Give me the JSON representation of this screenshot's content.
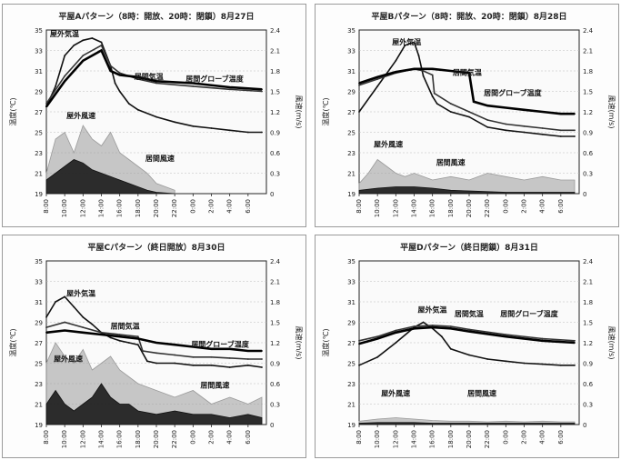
{
  "chart_data": [
    {
      "type": "line",
      "title": "平屋Aパターン（8時：開放、20時：閉鎖）8月27日",
      "ylabel": "温度(℃)",
      "y2label": "風速(m/s)",
      "ylim": [
        19,
        35
      ],
      "yticks": [
        "35",
        "33",
        "31",
        "29",
        "27",
        "25",
        "23",
        "21",
        "19"
      ],
      "y2lim": [
        0,
        2.4
      ],
      "y2ticks": [
        "2.4",
        "2.1",
        "1.8",
        "1.5",
        "1.2",
        "0.9",
        "0.6",
        "0.3",
        "0"
      ],
      "xlim": [
        8,
        32
      ],
      "xticks": [
        "8:00",
        "10:00",
        "12:00",
        "14:00",
        "16:00",
        "18:00",
        "20:00",
        "22:00",
        "0:00",
        "2:00",
        "4:00",
        "6:00"
      ],
      "annotations": [
        {
          "text": "屋外気温",
          "x": 8.4,
          "y": 34.4
        },
        {
          "text": "居間気温",
          "x": 17.6,
          "y": 30.2
        },
        {
          "text": "居間グローブ温度",
          "x": 23.2,
          "y": 30.0
        },
        {
          "text": "屋外風速",
          "x": 10.2,
          "y": 26.4
        },
        {
          "text": "居間風速",
          "x": 18.8,
          "y": 22.2
        }
      ],
      "series": [
        {
          "name": "屋外気温",
          "axis": "y",
          "color": "#111111",
          "x": [
            8,
            9,
            10,
            11,
            12,
            13,
            14,
            15,
            15.5,
            16,
            17,
            18,
            20,
            22,
            24,
            26,
            28,
            30,
            31.5
          ],
          "values": [
            27.5,
            29.5,
            32.5,
            33.5,
            34.0,
            34.2,
            33.8,
            31.5,
            29.8,
            29.0,
            27.8,
            27.2,
            26.5,
            26.0,
            25.6,
            25.4,
            25.2,
            25.0,
            25.0
          ]
        },
        {
          "name": "居間気温",
          "axis": "y",
          "color": "#333333",
          "x": [
            8,
            10,
            12,
            14,
            15,
            16,
            18,
            20,
            24,
            28,
            31.5
          ],
          "values": [
            27.8,
            30.5,
            32.5,
            33.5,
            31.5,
            30.8,
            30.2,
            29.8,
            29.5,
            29.2,
            29.0
          ]
        },
        {
          "name": "居間グローブ温度",
          "axis": "y",
          "color": "#000000",
          "x": [
            8,
            10,
            12,
            14,
            15,
            16,
            18,
            20,
            24,
            28,
            31.5
          ],
          "values": [
            27.5,
            30.0,
            32.0,
            33.0,
            31.0,
            30.6,
            30.4,
            30.0,
            29.8,
            29.4,
            29.2
          ]
        },
        {
          "name": "屋外風速",
          "axis": "y2",
          "color": "#9a9a9a",
          "x": [
            8,
            9,
            10,
            11,
            12,
            13,
            14,
            15,
            16,
            17,
            18,
            19,
            20,
            21,
            22
          ],
          "values": [
            0.3,
            0.8,
            0.9,
            0.6,
            1.0,
            0.8,
            0.7,
            0.9,
            0.6,
            0.5,
            0.4,
            0.3,
            0.15,
            0.1,
            0.05
          ]
        },
        {
          "name": "居間風速",
          "axis": "y2",
          "color": "#111111",
          "x": [
            8,
            9,
            10,
            11,
            12,
            13,
            14,
            15,
            16,
            17,
            18,
            19,
            20,
            21,
            22
          ],
          "values": [
            0.2,
            0.3,
            0.4,
            0.5,
            0.45,
            0.35,
            0.3,
            0.25,
            0.2,
            0.15,
            0.1,
            0.05,
            0.02,
            0.01,
            0.0
          ]
        }
      ]
    },
    {
      "type": "line",
      "title": "平屋Bパターン（8時：開放、20時：閉鎖）8月28日",
      "ylabel": "温度(℃)",
      "y2label": "風速(m/s)",
      "ylim": [
        19,
        35
      ],
      "yticks": [
        "35",
        "33",
        "31",
        "29",
        "27",
        "25",
        "23",
        "21",
        "19"
      ],
      "y2lim": [
        0,
        2.4
      ],
      "y2ticks": [
        "2.4",
        "2.1",
        "1.8",
        "1.5",
        "1.2",
        "0.9",
        "0.6",
        "0.3",
        "0"
      ],
      "xlim": [
        8,
        32
      ],
      "xticks": [
        "8:00",
        "10:00",
        "12:00",
        "14:00",
        "16:00",
        "18:00",
        "20:00",
        "22:00",
        "0:00",
        "2:00",
        "4:00",
        "6:00"
      ],
      "annotations": [
        {
          "text": "屋外気温",
          "x": 11.6,
          "y": 33.6
        },
        {
          "text": "居間気温",
          "x": 18.2,
          "y": 30.6
        },
        {
          "text": "居間グローブ温度",
          "x": 21.6,
          "y": 28.6
        },
        {
          "text": "屋外風速",
          "x": 9.6,
          "y": 23.6
        },
        {
          "text": "居間風速",
          "x": 16.4,
          "y": 21.8
        }
      ],
      "series": [
        {
          "name": "屋外気温",
          "axis": "y",
          "color": "#111111",
          "x": [
            8,
            10,
            12,
            13,
            14,
            14.5,
            15,
            16,
            16.5,
            18,
            20,
            22,
            24,
            26,
            28,
            30,
            31.5
          ],
          "values": [
            27.0,
            29.5,
            32.0,
            33.5,
            33.8,
            32.5,
            30.5,
            28.5,
            27.8,
            27.0,
            26.5,
            25.5,
            25.2,
            25.0,
            24.8,
            24.6,
            24.6
          ]
        },
        {
          "name": "居間気温",
          "axis": "y",
          "color": "#333333",
          "x": [
            8,
            10,
            12,
            14,
            15,
            16,
            16.2,
            18,
            20,
            22,
            24,
            26,
            28,
            30,
            31.5
          ],
          "values": [
            29.6,
            30.2,
            30.8,
            31.2,
            31.0,
            30.6,
            28.8,
            27.8,
            27.0,
            26.2,
            25.8,
            25.6,
            25.4,
            25.2,
            25.2
          ]
        },
        {
          "name": "居間グローブ温度",
          "axis": "y",
          "color": "#000000",
          "x": [
            8,
            10,
            12,
            14,
            16,
            18,
            20,
            20.5,
            22,
            24,
            26,
            28,
            30,
            31.5
          ],
          "values": [
            29.8,
            30.4,
            30.9,
            31.2,
            31.2,
            31.0,
            30.8,
            28.0,
            27.6,
            27.4,
            27.2,
            27.0,
            26.8,
            26.8
          ]
        },
        {
          "name": "屋外風速",
          "axis": "y2",
          "color": "#9a9a9a",
          "x": [
            8,
            9,
            10,
            11,
            12,
            13,
            14,
            16,
            18,
            20,
            22,
            24,
            26,
            28,
            30,
            31.5
          ],
          "values": [
            0.15,
            0.3,
            0.5,
            0.4,
            0.3,
            0.25,
            0.3,
            0.2,
            0.25,
            0.2,
            0.3,
            0.25,
            0.2,
            0.25,
            0.2,
            0.2
          ]
        },
        {
          "name": "居間風速",
          "axis": "y2",
          "color": "#111111",
          "x": [
            8,
            10,
            12,
            14,
            16,
            18,
            20,
            22,
            24,
            26,
            28,
            30,
            31.5
          ],
          "values": [
            0.05,
            0.08,
            0.1,
            0.1,
            0.08,
            0.05,
            0.04,
            0.03,
            0.02,
            0.02,
            0.02,
            0.02,
            0.02
          ]
        }
      ]
    },
    {
      "type": "line",
      "title": "平屋Cパターン（終日開放）8月30日",
      "ylabel": "温度(℃)",
      "y2label": "風速(m/s)",
      "ylim": [
        19,
        35
      ],
      "yticks": [
        "35",
        "33",
        "31",
        "29",
        "27",
        "25",
        "23",
        "21",
        "19"
      ],
      "y2lim": [
        0,
        2.4
      ],
      "y2ticks": [
        "2.4",
        "2.1",
        "1.8",
        "1.5",
        "1.2",
        "0.9",
        "0.6",
        "0.3",
        "0"
      ],
      "xlim": [
        8,
        32
      ],
      "xticks": [
        "8:00",
        "10:00",
        "12:00",
        "14:00",
        "16:00",
        "18:00",
        "20:00",
        "22:00",
        "0:00",
        "2:00",
        "4:00",
        "6:00"
      ],
      "annotations": [
        {
          "text": "屋外気温",
          "x": 10.2,
          "y": 31.6
        },
        {
          "text": "居間気温",
          "x": 15.0,
          "y": 28.4
        },
        {
          "text": "居間グローブ温度",
          "x": 23.8,
          "y": 26.6
        },
        {
          "text": "屋外風速",
          "x": 8.8,
          "y": 25.2
        },
        {
          "text": "居間風速",
          "x": 24.8,
          "y": 22.6
        }
      ],
      "series": [
        {
          "name": "屋外気温",
          "axis": "y",
          "color": "#111111",
          "x": [
            8,
            9,
            10,
            11,
            12,
            13,
            14,
            15,
            16,
            17,
            18,
            19,
            20,
            22,
            24,
            26,
            28,
            30,
            31.5
          ],
          "values": [
            29.5,
            31.0,
            31.5,
            30.5,
            29.5,
            28.8,
            28.0,
            27.5,
            27.2,
            27.0,
            26.8,
            25.2,
            25.0,
            25.0,
            24.8,
            24.8,
            24.6,
            24.8,
            24.6
          ]
        },
        {
          "name": "居間気温",
          "axis": "y",
          "color": "#333333",
          "x": [
            8,
            10,
            12,
            14,
            16,
            18,
            18.5,
            20,
            22,
            24,
            26,
            28,
            30,
            31.5
          ],
          "values": [
            28.5,
            29.0,
            28.5,
            28.0,
            27.8,
            27.6,
            26.2,
            26.0,
            25.8,
            25.6,
            25.6,
            25.5,
            25.4,
            25.4
          ]
        },
        {
          "name": "居間グローブ温度",
          "axis": "y",
          "color": "#000000",
          "x": [
            8,
            10,
            12,
            14,
            16,
            18,
            20,
            22,
            24,
            26,
            28,
            30,
            31.5
          ],
          "values": [
            28.0,
            28.2,
            28.0,
            27.8,
            27.6,
            27.4,
            27.0,
            26.8,
            26.6,
            26.4,
            26.4,
            26.2,
            26.2
          ]
        },
        {
          "name": "屋外風速",
          "axis": "y2",
          "color": "#9a9a9a",
          "x": [
            8,
            9,
            10,
            11,
            12,
            13,
            14,
            15,
            16,
            17,
            18,
            20,
            22,
            24,
            26,
            28,
            30,
            31.5
          ],
          "values": [
            0.9,
            1.2,
            1.0,
            0.9,
            1.1,
            0.8,
            0.9,
            1.0,
            0.8,
            0.7,
            0.6,
            0.5,
            0.4,
            0.5,
            0.3,
            0.4,
            0.3,
            0.4
          ]
        },
        {
          "name": "居間風速",
          "axis": "y2",
          "color": "#111111",
          "x": [
            8,
            9,
            10,
            11,
            12,
            13,
            14,
            15,
            16,
            17,
            18,
            20,
            22,
            24,
            26,
            28,
            30,
            31.5
          ],
          "values": [
            0.3,
            0.5,
            0.3,
            0.2,
            0.3,
            0.4,
            0.6,
            0.4,
            0.3,
            0.3,
            0.2,
            0.15,
            0.2,
            0.15,
            0.15,
            0.1,
            0.15,
            0.1
          ]
        }
      ]
    },
    {
      "type": "line",
      "title": "平屋Dパターン（終日閉鎖）8月31日",
      "ylabel": "温度(℃)",
      "y2label": "風速(m/s)",
      "ylim": [
        19,
        35
      ],
      "yticks": [
        "35",
        "33",
        "31",
        "29",
        "27",
        "25",
        "23",
        "21",
        "19"
      ],
      "y2lim": [
        0,
        2.4
      ],
      "y2ticks": [
        "2.4",
        "2.1",
        "1.8",
        "1.5",
        "1.2",
        "0.9",
        "0.6",
        "0.3",
        "0"
      ],
      "xlim": [
        8,
        32
      ],
      "xticks": [
        "8:00",
        "10:00",
        "12:00",
        "14:00",
        "16:00",
        "18:00",
        "20:00",
        "22:00",
        "0:00",
        "2:00",
        "4:00",
        "6:00"
      ],
      "annotations": [
        {
          "text": "屋外気温",
          "x": 14.4,
          "y": 30.0
        },
        {
          "text": "居間気温",
          "x": 18.4,
          "y": 29.6
        },
        {
          "text": "居間グローブ温度",
          "x": 23.4,
          "y": 29.6
        },
        {
          "text": "屋外風速",
          "x": 10.4,
          "y": 21.8
        },
        {
          "text": "居間風速",
          "x": 19.8,
          "y": 21.8
        }
      ],
      "series": [
        {
          "name": "屋外気温",
          "axis": "y",
          "color": "#111111",
          "x": [
            8,
            10,
            12,
            14,
            15,
            16,
            17,
            18,
            20,
            22,
            24,
            26,
            28,
            30,
            31.5
          ],
          "values": [
            24.8,
            25.6,
            27.0,
            28.5,
            29.0,
            28.4,
            27.6,
            26.4,
            25.8,
            25.4,
            25.2,
            25.0,
            24.9,
            24.8,
            24.8
          ]
        },
        {
          "name": "居間気温",
          "axis": "y",
          "color": "#333333",
          "x": [
            8,
            10,
            12,
            14,
            16,
            18,
            20,
            24,
            28,
            31.5
          ],
          "values": [
            27.2,
            27.6,
            28.2,
            28.6,
            28.7,
            28.6,
            28.3,
            27.8,
            27.4,
            27.2
          ]
        },
        {
          "name": "居間グローブ温度",
          "axis": "y",
          "color": "#000000",
          "x": [
            8,
            10,
            12,
            14,
            16,
            18,
            20,
            24,
            28,
            31.5
          ],
          "values": [
            26.9,
            27.4,
            28.0,
            28.4,
            28.5,
            28.4,
            28.1,
            27.6,
            27.2,
            27.0
          ]
        },
        {
          "name": "屋外風速",
          "axis": "y2",
          "color": "#9a9a9a",
          "x": [
            8,
            10,
            12,
            14,
            16,
            18,
            20,
            22,
            24,
            26,
            28,
            30,
            31.5
          ],
          "values": [
            0.05,
            0.08,
            0.1,
            0.08,
            0.06,
            0.05,
            0.05,
            0.04,
            0.05,
            0.04,
            0.05,
            0.04,
            0.04
          ]
        },
        {
          "name": "居間風速",
          "axis": "y2",
          "color": "#111111",
          "x": [
            8,
            10,
            12,
            14,
            16,
            18,
            20,
            22,
            24,
            26,
            28,
            30,
            31.5
          ],
          "values": [
            0.02,
            0.03,
            0.03,
            0.03,
            0.02,
            0.02,
            0.02,
            0.02,
            0.02,
            0.02,
            0.02,
            0.02,
            0.02
          ]
        }
      ]
    }
  ]
}
